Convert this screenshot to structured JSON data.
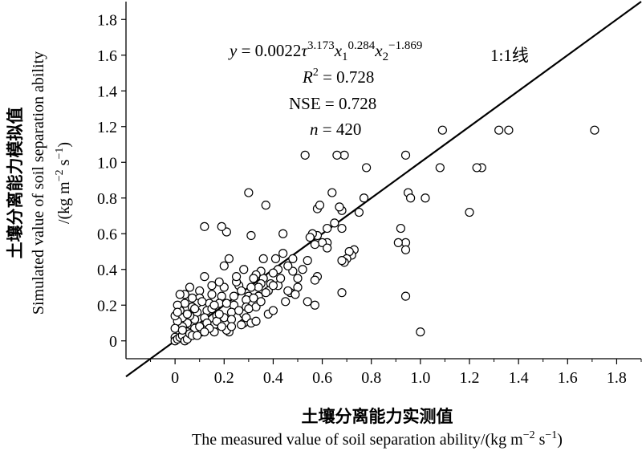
{
  "chart_data": {
    "type": "scatter",
    "xlim": [
      -0.2,
      1.9
    ],
    "ylim": [
      -0.1,
      1.9
    ],
    "x_ticks": [
      "0",
      "0.2",
      "0.4",
      "0.6",
      "0.8",
      "1.0",
      "1.2",
      "1.4",
      "1.6",
      "1.8"
    ],
    "y_ticks": [
      "0",
      "0.2",
      "0.4",
      "0.6",
      "0.8",
      "1.0",
      "1.2",
      "1.4",
      "1.6",
      "1.8"
    ],
    "x_tick_values": [
      0,
      0.2,
      0.4,
      0.6,
      0.8,
      1.0,
      1.2,
      1.4,
      1.6,
      1.8
    ],
    "y_tick_values": [
      0,
      0.2,
      0.4,
      0.6,
      0.8,
      1.0,
      1.2,
      1.4,
      1.6,
      1.8
    ],
    "xlabel_cn": "土壤分离能力实测值",
    "xlabel_en": "The measured value of soil separation ability/(kg m",
    "xlabel_en_sup": "−2",
    "xlabel_en_mid": " s",
    "xlabel_en_sup2": "−1",
    "xlabel_en_end": ")",
    "ylabel_cn": "土壤分离能力模拟值",
    "ylabel_en1": "Simulated value of soil separation ability",
    "ylabel_en2_a": "/(kg m",
    "ylabel_en2_sup": "−2",
    "ylabel_en2_mid": " s",
    "ylabel_en2_sup2": "−1",
    "ylabel_en2_end": ")",
    "reference_line": {
      "label": "1:1线",
      "from": [
        -0.2,
        -0.2
      ],
      "to": [
        1.9,
        1.9
      ]
    },
    "annotations": {
      "eq_y": "y",
      "eq_eq": " = 0.0022",
      "eq_tau": "τ",
      "eq_e1": "3.173",
      "eq_x1": "x",
      "eq_s1": "1",
      "eq_e2": "0.284",
      "eq_x2": "x",
      "eq_s2": "2",
      "eq_e3": "−1.869",
      "r2_R": "R",
      "r2_sup": "2",
      "r2_val": " = 0.728",
      "nse": "NSE = 0.728",
      "n_n": "n",
      "n_val": " = 420"
    },
    "points": [
      [
        1.71,
        1.18
      ],
      [
        1.36,
        1.18
      ],
      [
        1.32,
        1.18
      ],
      [
        1.25,
        0.97
      ],
      [
        1.23,
        0.97
      ],
      [
        1.2,
        0.72
      ],
      [
        1.09,
        1.18
      ],
      [
        1.08,
        0.97
      ],
      [
        1.02,
        0.8
      ],
      [
        1.0,
        0.05
      ],
      [
        0.95,
        0.83
      ],
      [
        0.96,
        0.8
      ],
      [
        0.94,
        1.04
      ],
      [
        0.94,
        0.55
      ],
      [
        0.94,
        0.51
      ],
      [
        0.94,
        0.25
      ],
      [
        0.92,
        0.63
      ],
      [
        0.91,
        0.55
      ],
      [
        0.78,
        0.97
      ],
      [
        0.77,
        0.8
      ],
      [
        0.75,
        0.72
      ],
      [
        0.73,
        0.51
      ],
      [
        0.72,
        0.48
      ],
      [
        0.71,
        0.5
      ],
      [
        0.7,
        0.46
      ],
      [
        0.69,
        0.44
      ],
      [
        0.68,
        0.45
      ],
      [
        0.69,
        1.04
      ],
      [
        0.66,
        1.04
      ],
      [
        0.64,
        0.83
      ],
      [
        0.68,
        0.63
      ],
      [
        0.68,
        0.73
      ],
      [
        0.67,
        0.75
      ],
      [
        0.62,
        0.63
      ],
      [
        0.62,
        0.55
      ],
      [
        0.6,
        0.55
      ],
      [
        0.58,
        0.59
      ],
      [
        0.57,
        0.54
      ],
      [
        0.58,
        0.74
      ],
      [
        0.59,
        0.76
      ],
      [
        0.56,
        0.6
      ],
      [
        0.58,
        0.36
      ],
      [
        0.57,
        0.34
      ],
      [
        0.57,
        0.2
      ],
      [
        0.54,
        0.22
      ],
      [
        0.53,
        1.04
      ],
      [
        0.68,
        0.27
      ],
      [
        0.5,
        0.35
      ],
      [
        0.5,
        0.3
      ],
      [
        0.48,
        0.39
      ],
      [
        0.47,
        0.27
      ],
      [
        0.44,
        0.49
      ],
      [
        0.44,
        0.6
      ],
      [
        0.41,
        0.46
      ],
      [
        0.42,
        0.4
      ],
      [
        0.4,
        0.38
      ],
      [
        0.42,
        0.31
      ],
      [
        0.39,
        0.32
      ],
      [
        0.38,
        0.28
      ],
      [
        0.37,
        0.76
      ],
      [
        0.36,
        0.35
      ],
      [
        0.35,
        0.39
      ],
      [
        0.35,
        0.32
      ],
      [
        0.34,
        0.3
      ],
      [
        0.34,
        0.25
      ],
      [
        0.33,
        0.19
      ],
      [
        0.33,
        0.37
      ],
      [
        0.32,
        0.35
      ],
      [
        0.31,
        0.3
      ],
      [
        0.3,
        0.83
      ],
      [
        0.31,
        0.59
      ],
      [
        0.3,
        0.25
      ],
      [
        0.29,
        0.23
      ],
      [
        0.29,
        0.19
      ],
      [
        0.28,
        0.15
      ],
      [
        0.28,
        0.1
      ],
      [
        0.27,
        0.09
      ],
      [
        0.26,
        0.31
      ],
      [
        0.25,
        0.33
      ],
      [
        0.24,
        0.2
      ],
      [
        0.23,
        0.16
      ],
      [
        0.22,
        0.46
      ],
      [
        0.21,
        0.61
      ],
      [
        0.19,
        0.64
      ],
      [
        0.22,
        0.05
      ],
      [
        0.21,
        0.06
      ],
      [
        0.2,
        0.3
      ],
      [
        0.19,
        0.25
      ],
      [
        0.18,
        0.21
      ],
      [
        0.18,
        0.33
      ],
      [
        0.17,
        0.14
      ],
      [
        0.16,
        0.09
      ],
      [
        0.16,
        0.05
      ],
      [
        0.15,
        0.26
      ],
      [
        0.15,
        0.31
      ],
      [
        0.14,
        0.21
      ],
      [
        0.13,
        0.17
      ],
      [
        0.12,
        0.13
      ],
      [
        0.12,
        0.64
      ],
      [
        0.12,
        0.36
      ],
      [
        0.11,
        0.05
      ],
      [
        0.1,
        0.28
      ],
      [
        0.1,
        0.24
      ],
      [
        0.09,
        0.21
      ],
      [
        0.09,
        0.16
      ],
      [
        0.08,
        0.12
      ],
      [
        0.08,
        0.07
      ],
      [
        0.07,
        0.19
      ],
      [
        0.07,
        0.24
      ],
      [
        0.06,
        0.3
      ],
      [
        0.06,
        0.14
      ],
      [
        0.05,
        0.1
      ],
      [
        0.05,
        0.05
      ],
      [
        0.04,
        0.21
      ],
      [
        0.04,
        0.26
      ],
      [
        0.03,
        0.13
      ],
      [
        0.03,
        0.08
      ],
      [
        0.02,
        0.17
      ],
      [
        0.02,
        0.04
      ],
      [
        0.01,
        0.11
      ],
      [
        0.01,
        0.2
      ],
      [
        0.0,
        0.02
      ],
      [
        0.0,
        0.07
      ],
      [
        0.0,
        0.14
      ],
      [
        0.0,
        0.0
      ],
      [
        0.01,
        0.01
      ],
      [
        0.02,
        0.02
      ],
      [
        0.03,
        0.03
      ],
      [
        0.04,
        0.0
      ],
      [
        0.05,
        0.01
      ],
      [
        0.06,
        0.04
      ],
      [
        0.07,
        0.03
      ],
      [
        0.1,
        0.08
      ],
      [
        0.13,
        0.1
      ],
      [
        0.14,
        0.07
      ],
      [
        0.17,
        0.11
      ],
      [
        0.2,
        0.13
      ],
      [
        0.23,
        0.12
      ],
      [
        0.26,
        0.17
      ],
      [
        0.29,
        0.13
      ],
      [
        0.31,
        0.1
      ],
      [
        0.33,
        0.11
      ],
      [
        0.35,
        0.22
      ],
      [
        0.38,
        0.15
      ],
      [
        0.4,
        0.17
      ],
      [
        0.45,
        0.22
      ],
      [
        0.46,
        0.28
      ],
      [
        0.49,
        0.26
      ],
      [
        0.52,
        0.4
      ],
      [
        0.54,
        0.45
      ],
      [
        0.36,
        0.46
      ],
      [
        0.28,
        0.4
      ],
      [
        0.25,
        0.36
      ],
      [
        0.2,
        0.42
      ],
      [
        0.02,
        0.26
      ],
      [
        0.01,
        0.16
      ],
      [
        0.03,
        0.06
      ],
      [
        0.05,
        0.15
      ],
      [
        0.08,
        0.18
      ],
      [
        0.11,
        0.22
      ],
      [
        0.15,
        0.18
      ],
      [
        0.18,
        0.15
      ],
      [
        0.21,
        0.21
      ],
      [
        0.24,
        0.25
      ],
      [
        0.27,
        0.28
      ],
      [
        0.3,
        0.18
      ],
      [
        0.32,
        0.24
      ],
      [
        0.37,
        0.27
      ],
      [
        0.4,
        0.31
      ],
      [
        0.43,
        0.35
      ],
      [
        0.46,
        0.42
      ],
      [
        0.48,
        0.46
      ],
      [
        0.62,
        0.52
      ],
      [
        0.65,
        0.66
      ],
      [
        0.55,
        0.58
      ],
      [
        0.09,
        0.03
      ],
      [
        0.12,
        0.05
      ],
      [
        0.16,
        0.2
      ],
      [
        0.19,
        0.08
      ],
      [
        0.23,
        0.08
      ]
    ]
  }
}
